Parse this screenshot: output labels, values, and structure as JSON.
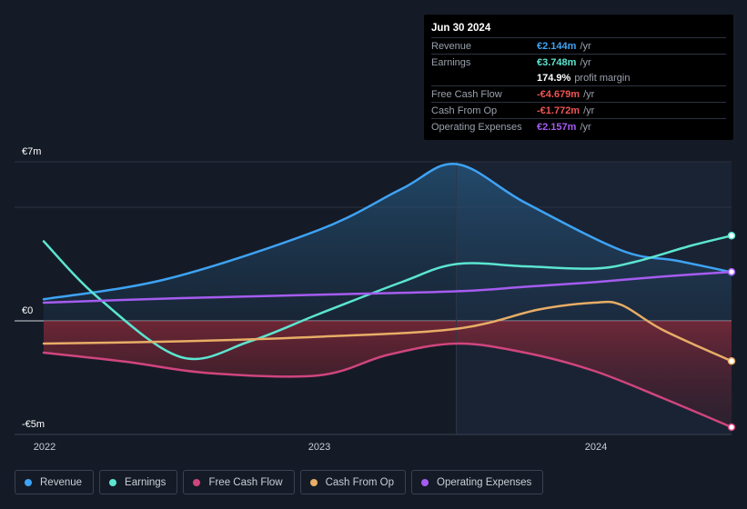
{
  "tooltip": {
    "date": "Jun 30 2024",
    "rows": [
      {
        "label": "Revenue",
        "value": "€2.144m",
        "unit": "/yr",
        "color": "#3ea3f5"
      },
      {
        "label": "Earnings",
        "value": "€3.748m",
        "unit": "/yr",
        "color": "#5ce5d0"
      },
      {
        "label": "",
        "value": "174.9%",
        "unit": "profit margin",
        "color": "#ffffff"
      },
      {
        "label": "Free Cash Flow",
        "value": "-€4.679m",
        "unit": "/yr",
        "color": "#f05454"
      },
      {
        "label": "Cash From Op",
        "value": "-€1.772m",
        "unit": "/yr",
        "color": "#f05454"
      },
      {
        "label": "Operating Expenses",
        "value": "€2.157m",
        "unit": "/yr",
        "color": "#a55cf0"
      }
    ]
  },
  "legend": [
    {
      "label": "Revenue",
      "color": "#3ea3f5"
    },
    {
      "label": "Earnings",
      "color": "#5ce5d0"
    },
    {
      "label": "Free Cash Flow",
      "color": "#d0457e"
    },
    {
      "label": "Cash From Op",
      "color": "#e8ad66"
    },
    {
      "label": "Operating Expenses",
      "color": "#a55cf0"
    }
  ],
  "chart_data": {
    "type": "line",
    "y_ticks": [
      "€7m",
      "€0",
      "-€5m"
    ],
    "x_ticks": [
      "2022",
      "2023",
      "2024"
    ],
    "ylim": [
      -5,
      7
    ],
    "xlim": [
      2022.0,
      2024.5
    ],
    "highlight_x": 2023.5,
    "series": [
      {
        "name": "Revenue",
        "color": "#3ea3f5",
        "fill": true,
        "x": [
          2022.0,
          2022.45,
          2023.0,
          2023.3,
          2023.5,
          2023.75,
          2024.1,
          2024.3,
          2024.5
        ],
        "y": [
          0.95,
          1.85,
          4.0,
          5.8,
          6.9,
          5.2,
          3.1,
          2.65,
          2.144
        ]
      },
      {
        "name": "Earnings",
        "color": "#5ce5d0",
        "fill": false,
        "x": [
          2022.0,
          2022.2,
          2022.5,
          2022.75,
          2023.0,
          2023.3,
          2023.5,
          2023.75,
          2024.0,
          2024.15,
          2024.35,
          2024.5
        ],
        "y": [
          3.5,
          1.0,
          -1.6,
          -0.9,
          0.3,
          1.7,
          2.5,
          2.4,
          2.3,
          2.6,
          3.3,
          3.748
        ]
      },
      {
        "name": "Free Cash Flow",
        "color": "#d0457e",
        "fill": true,
        "x": [
          2022.0,
          2022.3,
          2022.6,
          2023.0,
          2023.25,
          2023.5,
          2023.75,
          2024.0,
          2024.25,
          2024.5
        ],
        "y": [
          -1.4,
          -1.8,
          -2.3,
          -2.4,
          -1.5,
          -1.0,
          -1.4,
          -2.2,
          -3.4,
          -4.679
        ]
      },
      {
        "name": "Cash From Op",
        "color": "#e8ad66",
        "fill": false,
        "x": [
          2022.0,
          2022.5,
          2023.0,
          2023.5,
          2023.8,
          2024.0,
          2024.1,
          2024.25,
          2024.5
        ],
        "y": [
          -1.0,
          -0.9,
          -0.7,
          -0.35,
          0.5,
          0.8,
          0.7,
          -0.4,
          -1.772
        ]
      },
      {
        "name": "Operating Expenses",
        "color": "#a55cf0",
        "fill": false,
        "x": [
          2022.0,
          2022.5,
          2023.0,
          2023.5,
          2023.75,
          2024.0,
          2024.25,
          2024.5
        ],
        "y": [
          0.8,
          1.0,
          1.15,
          1.3,
          1.5,
          1.7,
          1.95,
          2.157
        ]
      }
    ]
  }
}
